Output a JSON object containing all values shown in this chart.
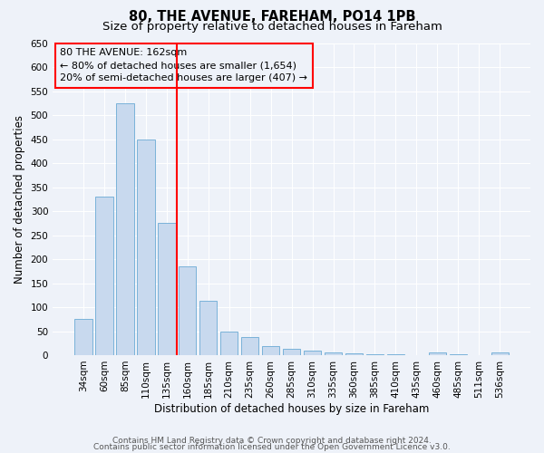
{
  "title": "80, THE AVENUE, FAREHAM, PO14 1PB",
  "subtitle": "Size of property relative to detached houses in Fareham",
  "xlabel": "Distribution of detached houses by size in Fareham",
  "ylabel": "Number of detached properties",
  "categories": [
    "34sqm",
    "60sqm",
    "85sqm",
    "110sqm",
    "135sqm",
    "160sqm",
    "185sqm",
    "210sqm",
    "235sqm",
    "260sqm",
    "285sqm",
    "310sqm",
    "335sqm",
    "360sqm",
    "385sqm",
    "410sqm",
    "435sqm",
    "460sqm",
    "485sqm",
    "511sqm",
    "536sqm"
  ],
  "values": [
    75,
    330,
    525,
    450,
    275,
    185,
    113,
    50,
    37,
    18,
    14,
    10,
    5,
    4,
    2,
    1,
    0,
    5,
    1,
    0,
    5
  ],
  "bar_color": "#c8d9ee",
  "bar_edge_color": "#6aaad4",
  "red_line_index": 5,
  "annotation_title": "80 THE AVENUE: 162sqm",
  "annotation_line1": "← 80% of detached houses are smaller (1,654)",
  "annotation_line2": "20% of semi-detached houses are larger (407) →",
  "ylim": [
    0,
    650
  ],
  "yticks": [
    0,
    50,
    100,
    150,
    200,
    250,
    300,
    350,
    400,
    450,
    500,
    550,
    600,
    650
  ],
  "footer1": "Contains HM Land Registry data © Crown copyright and database right 2024.",
  "footer2": "Contains public sector information licensed under the Open Government Licence v3.0.",
  "bg_color": "#eef2f9",
  "grid_color": "#ffffff",
  "title_fontsize": 10.5,
  "subtitle_fontsize": 9.5,
  "axis_label_fontsize": 8.5,
  "tick_fontsize": 7.5,
  "annotation_fontsize": 8,
  "footer_fontsize": 6.5
}
